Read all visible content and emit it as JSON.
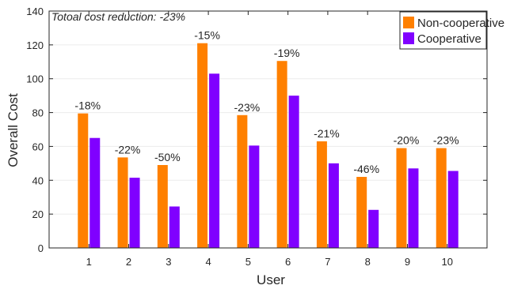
{
  "chart_data": {
    "type": "bar",
    "title": "",
    "xlabel": "User",
    "ylabel": "Overall Cost",
    "ylim": [
      0,
      140
    ],
    "yticks": [
      0,
      20,
      40,
      60,
      80,
      100,
      120,
      140
    ],
    "grid": true,
    "legend_position": "top-right",
    "categories": [
      "1",
      "2",
      "3",
      "4",
      "5",
      "6",
      "7",
      "8",
      "9",
      "10"
    ],
    "series": [
      {
        "name": "Non-cooperative",
        "color": "#FF8000",
        "values": [
          79.5,
          53.5,
          49,
          121,
          78.5,
          110.5,
          63,
          42,
          59,
          59
        ]
      },
      {
        "name": "Cooperative",
        "color": "#8000FF",
        "values": [
          65,
          41.5,
          24.5,
          103,
          60.5,
          90,
          50,
          22.5,
          47,
          45.5
        ]
      }
    ],
    "bar_labels": [
      "-18%",
      "-22%",
      "-50%",
      "-15%",
      "-23%",
      "-19%",
      "-21%",
      "-46%",
      "-20%",
      "-23%"
    ],
    "annotation": "Totoal cost reduction: -23%"
  }
}
